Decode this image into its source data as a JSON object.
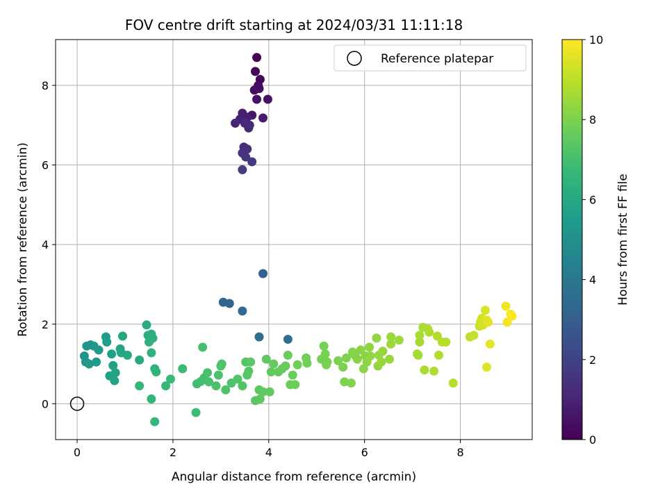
{
  "chart_data": {
    "type": "scatter",
    "title": "FOV centre drift starting at 2024/03/31 11:11:18",
    "xlabel": "Angular distance from reference (arcmin)",
    "ylabel": "Rotation from reference (arcmin)",
    "xlim": [
      -0.45,
      9.5
    ],
    "ylim": [
      -0.9,
      9.15
    ],
    "xticks": [
      0,
      2,
      4,
      6,
      8
    ],
    "yticks": [
      0,
      2,
      4,
      6,
      8
    ],
    "grid": true,
    "legend": {
      "label": "Reference platepar",
      "placement": "top-right",
      "marker": "open-circle"
    },
    "reference_point": {
      "x": 0,
      "y": 0
    },
    "colorbar": {
      "label": "Hours from first FF file",
      "range": [
        0,
        10
      ],
      "ticks": [
        0,
        2,
        4,
        6,
        8,
        10
      ],
      "colormap": "viridis",
      "colors": [
        "#440154",
        "#482878",
        "#3e4989",
        "#31688e",
        "#26828e",
        "#1f9e89",
        "#35b779",
        "#6ece58",
        "#b5de2b",
        "#fde725"
      ]
    },
    "series": [
      {
        "points": [
          [
            3.75,
            8.7,
            0.05
          ],
          [
            3.72,
            8.35,
            0.15
          ],
          [
            3.82,
            8.15,
            0.25
          ],
          [
            3.78,
            8.0,
            0.3
          ],
          [
            3.7,
            7.88,
            0.35
          ],
          [
            3.8,
            7.92,
            0.4
          ],
          [
            3.75,
            7.65,
            0.45
          ],
          [
            3.98,
            7.65,
            0.5
          ],
          [
            3.65,
            7.25,
            0.6
          ],
          [
            3.88,
            7.18,
            0.7
          ],
          [
            3.45,
            7.3,
            0.8
          ],
          [
            3.55,
            7.2,
            0.85
          ],
          [
            3.4,
            7.15,
            0.9
          ],
          [
            3.3,
            7.05,
            1.0
          ],
          [
            3.5,
            7.05,
            1.1
          ],
          [
            3.6,
            7.0,
            1.15
          ],
          [
            3.58,
            6.93,
            1.2
          ],
          [
            3.48,
            6.45,
            1.3
          ],
          [
            3.55,
            6.4,
            1.4
          ],
          [
            3.45,
            6.3,
            1.5
          ],
          [
            3.52,
            6.2,
            1.6
          ],
          [
            3.65,
            6.08,
            1.7
          ],
          [
            3.45,
            5.88,
            1.8
          ],
          [
            3.88,
            3.27,
            3.1
          ],
          [
            3.05,
            2.55,
            3.2
          ],
          [
            3.18,
            2.52,
            3.3
          ],
          [
            3.45,
            2.33,
            3.4
          ],
          [
            3.8,
            1.68,
            3.5
          ],
          [
            4.4,
            1.62,
            3.6
          ],
          [
            0.15,
            1.2,
            5.1
          ],
          [
            0.2,
            1.45,
            5.15
          ],
          [
            0.28,
            1.48,
            5.2
          ],
          [
            0.18,
            1.05,
            5.25
          ],
          [
            0.25,
            1.0,
            5.3
          ],
          [
            0.35,
            1.45,
            5.35
          ],
          [
            0.4,
            1.05,
            5.4
          ],
          [
            0.45,
            1.35,
            5.45
          ],
          [
            0.6,
            1.68,
            5.5
          ],
          [
            0.62,
            1.55,
            5.55
          ],
          [
            0.72,
            1.25,
            5.6
          ],
          [
            0.68,
            0.7,
            5.65
          ],
          [
            0.75,
            0.96,
            5.7
          ],
          [
            0.78,
            0.58,
            5.75
          ],
          [
            0.8,
            0.78,
            5.8
          ],
          [
            0.9,
            1.38,
            5.85
          ],
          [
            0.92,
            1.28,
            5.9
          ],
          [
            0.95,
            1.7,
            5.95
          ],
          [
            1.05,
            1.22,
            6.0
          ],
          [
            1.3,
            1.1,
            6.05
          ],
          [
            1.45,
            1.98,
            6.1
          ],
          [
            1.48,
            1.72,
            6.15
          ],
          [
            1.52,
            1.62,
            6.2
          ],
          [
            1.55,
            1.75,
            6.25
          ],
          [
            1.58,
            1.65,
            6.3
          ],
          [
            1.5,
            1.55,
            6.35
          ],
          [
            1.55,
            1.28,
            6.4
          ],
          [
            1.62,
            0.88,
            6.45
          ],
          [
            1.65,
            0.8,
            6.5
          ],
          [
            1.55,
            0.12,
            6.55
          ],
          [
            1.62,
            -0.45,
            6.6
          ],
          [
            1.3,
            0.45,
            6.62
          ],
          [
            1.85,
            0.45,
            6.7
          ],
          [
            1.95,
            0.62,
            6.75
          ],
          [
            2.2,
            0.88,
            6.8
          ],
          [
            2.48,
            -0.22,
            6.85
          ],
          [
            2.5,
            0.5,
            6.9
          ],
          [
            2.58,
            0.56,
            6.95
          ],
          [
            2.62,
            1.42,
            7.0
          ],
          [
            2.65,
            0.65,
            7.02
          ],
          [
            2.72,
            0.78,
            7.05
          ],
          [
            2.75,
            0.55,
            7.08
          ],
          [
            2.9,
            0.45,
            7.1
          ],
          [
            2.95,
            0.72,
            7.12
          ],
          [
            3.0,
            0.95,
            7.15
          ],
          [
            3.02,
            1.0,
            7.18
          ],
          [
            3.1,
            0.35,
            7.2
          ],
          [
            3.22,
            0.52,
            7.22
          ],
          [
            3.35,
            0.62,
            7.25
          ],
          [
            3.45,
            0.45,
            7.28
          ],
          [
            3.52,
            1.05,
            7.3
          ],
          [
            3.55,
            0.72,
            7.32
          ],
          [
            3.58,
            0.82,
            7.35
          ],
          [
            3.62,
            1.05,
            7.38
          ],
          [
            3.72,
            0.08,
            7.4
          ],
          [
            3.8,
            0.35,
            7.42
          ],
          [
            3.82,
            0.12,
            7.45
          ],
          [
            3.88,
            0.3,
            7.48
          ],
          [
            3.95,
            1.12,
            7.5
          ],
          [
            4.02,
            0.3,
            7.52
          ],
          [
            4.05,
            0.8,
            7.55
          ],
          [
            4.1,
            1.0,
            7.58
          ],
          [
            4.2,
            0.8,
            7.6
          ],
          [
            4.28,
            0.88,
            7.62
          ],
          [
            4.35,
            0.95,
            7.65
          ],
          [
            4.4,
            1.22,
            7.68
          ],
          [
            4.45,
            0.48,
            7.7
          ],
          [
            4.5,
            0.72,
            7.72
          ],
          [
            4.55,
            0.48,
            7.75
          ],
          [
            4.6,
            0.98,
            7.78
          ],
          [
            4.78,
            1.15,
            7.8
          ],
          [
            4.8,
            1.02,
            7.82
          ],
          [
            5.1,
            1.12,
            7.85
          ],
          [
            5.15,
            1.45,
            7.88
          ],
          [
            5.18,
            1.25,
            7.9
          ],
          [
            5.22,
            1.05,
            7.92
          ],
          [
            5.2,
            0.98,
            7.95
          ],
          [
            5.45,
            1.08,
            7.98
          ],
          [
            5.55,
            0.92,
            8.0
          ],
          [
            5.58,
            0.55,
            8.02
          ],
          [
            5.62,
            1.15,
            8.05
          ],
          [
            5.72,
            0.52,
            8.08
          ],
          [
            5.75,
            1.3,
            8.1
          ],
          [
            5.8,
            1.22,
            8.12
          ],
          [
            5.85,
            1.12,
            8.15
          ],
          [
            5.92,
            1.35,
            8.18
          ],
          [
            5.98,
            0.88,
            8.2
          ],
          [
            6.02,
            1.2,
            8.22
          ],
          [
            6.05,
            1.05,
            8.25
          ],
          [
            6.1,
            1.42,
            8.28
          ],
          [
            6.12,
            1.2,
            8.3
          ],
          [
            6.25,
            1.65,
            8.32
          ],
          [
            6.28,
            0.95,
            8.35
          ],
          [
            6.3,
            1.22,
            8.38
          ],
          [
            6.35,
            1.05,
            8.4
          ],
          [
            6.38,
            1.32,
            8.42
          ],
          [
            6.52,
            1.12,
            8.45
          ],
          [
            6.55,
            1.68,
            8.48
          ],
          [
            6.55,
            1.5,
            8.5
          ],
          [
            6.72,
            1.6,
            8.52
          ],
          [
            7.1,
            1.25,
            8.6
          ],
          [
            7.12,
            1.22,
            8.62
          ],
          [
            7.15,
            1.55,
            8.65
          ],
          [
            7.15,
            1.72,
            8.68
          ],
          [
            7.22,
            1.92,
            8.7
          ],
          [
            7.25,
            0.85,
            8.72
          ],
          [
            7.32,
            1.88,
            8.75
          ],
          [
            7.35,
            1.8,
            8.78
          ],
          [
            7.45,
            0.82,
            8.8
          ],
          [
            7.52,
            1.7,
            8.82
          ],
          [
            7.55,
            1.22,
            8.85
          ],
          [
            7.62,
            1.55,
            8.88
          ],
          [
            7.7,
            1.55,
            8.9
          ],
          [
            7.85,
            0.52,
            8.92
          ],
          [
            8.2,
            1.68,
            9.0
          ],
          [
            8.28,
            1.72,
            9.1
          ],
          [
            8.4,
            1.95,
            9.2
          ],
          [
            8.42,
            2.05,
            9.3
          ],
          [
            8.45,
            2.15,
            9.35
          ],
          [
            8.48,
            1.98,
            9.4
          ],
          [
            8.52,
            2.35,
            9.45
          ],
          [
            8.55,
            2.1,
            9.5
          ],
          [
            8.55,
            0.92,
            9.55
          ],
          [
            8.58,
            2.05,
            9.6
          ],
          [
            8.62,
            1.5,
            9.65
          ],
          [
            8.95,
            2.45,
            9.75
          ],
          [
            8.98,
            2.05,
            9.8
          ],
          [
            9.05,
            2.25,
            9.9
          ],
          [
            9.08,
            2.2,
            9.95
          ]
        ]
      }
    ]
  }
}
